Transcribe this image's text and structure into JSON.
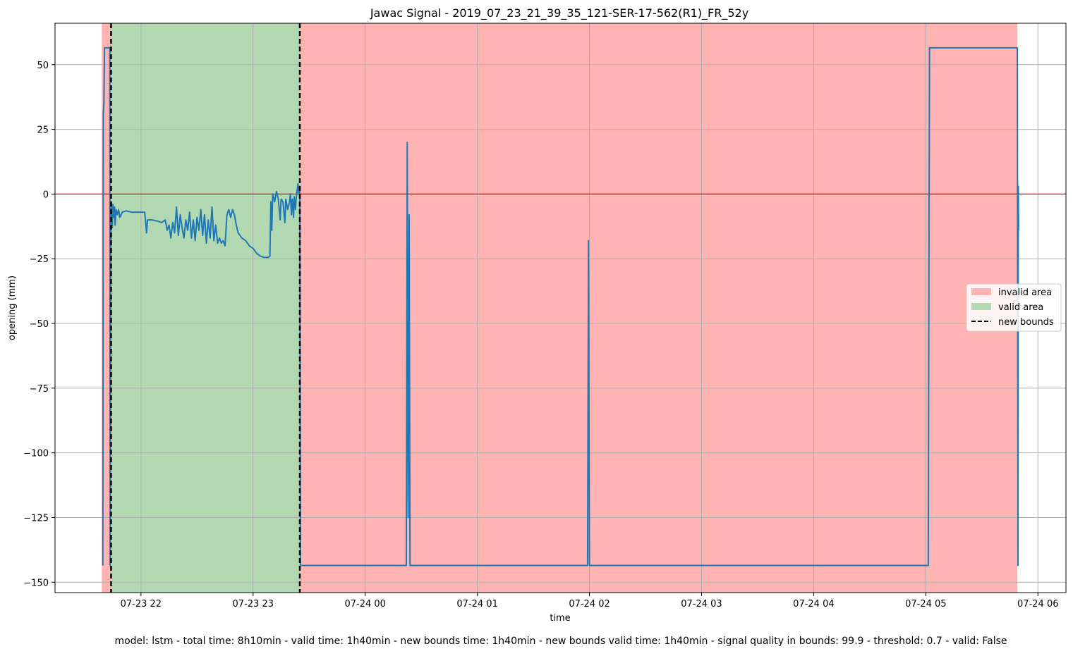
{
  "chart_data": {
    "type": "line",
    "title": "Jawac Signal - 2019_07_23_21_39_35_121-SER-17-562(R1)_FR_52y",
    "xlabel": "time",
    "ylabel": "opening (mm)",
    "ylim": [
      -154,
      66
    ],
    "xlim": [
      "2019-07-23 21:14",
      "2019-07-24 06:15"
    ],
    "grid": true,
    "legend_position": "center-right",
    "x_ticks": [
      {
        "label": "07-23 22",
        "t": "2019-07-23 22:00"
      },
      {
        "label": "07-23 23",
        "t": "2019-07-23 23:00"
      },
      {
        "label": "07-24 00",
        "t": "2019-07-24 00:00"
      },
      {
        "label": "07-24 01",
        "t": "2019-07-24 01:00"
      },
      {
        "label": "07-24 02",
        "t": "2019-07-24 02:00"
      },
      {
        "label": "07-24 03",
        "t": "2019-07-24 03:00"
      },
      {
        "label": "07-24 04",
        "t": "2019-07-24 04:00"
      },
      {
        "label": "07-24 05",
        "t": "2019-07-24 05:00"
      },
      {
        "label": "07-24 06",
        "t": "2019-07-24 06:00"
      }
    ],
    "y_ticks": [
      {
        "label": "50",
        "v": 50
      },
      {
        "label": "25",
        "v": 25
      },
      {
        "label": "0",
        "v": 0
      },
      {
        "label": "−25",
        "v": -25
      },
      {
        "label": "−50",
        "v": -50
      },
      {
        "label": "−75",
        "v": -75
      },
      {
        "label": "−100",
        "v": -100
      },
      {
        "label": "−125",
        "v": -125
      },
      {
        "label": "−150",
        "v": -150
      }
    ],
    "regions": [
      {
        "label": "invalid area",
        "kind": "invalid",
        "start": "2019-07-23 21:39",
        "end": "2019-07-24 05:49",
        "color": "#ffb3b3"
      },
      {
        "label": "valid area",
        "kind": "valid",
        "start": "2019-07-23 21:44",
        "end": "2019-07-23 23:25",
        "color": "#b3d9b3"
      }
    ],
    "bounds": {
      "label": "new bounds",
      "start": "2019-07-23 21:44",
      "end": "2019-07-23 23:25",
      "style": "dashed",
      "color": "#000000"
    },
    "reference_line": {
      "value": 0,
      "color": "#ff0000"
    },
    "series": [
      {
        "color": "#1f77b4",
        "points": [
          [
            "2019-07-23 21:39:35",
            -143.5
          ],
          [
            "2019-07-23 21:39:50",
            31
          ],
          [
            "2019-07-23 21:40:10",
            35
          ],
          [
            "2019-07-23 21:40:30",
            56.5
          ],
          [
            "2019-07-23 21:43:00",
            56.5
          ],
          [
            "2019-07-23 21:43:20",
            56.5
          ],
          [
            "2019-07-23 21:43:30",
            -143.5
          ],
          [
            "2019-07-23 21:43:50",
            -24
          ],
          [
            "2019-07-23 21:44:10",
            -3
          ],
          [
            "2019-07-23 21:44:40",
            -13
          ],
          [
            "2019-07-23 21:45:00",
            -4
          ],
          [
            "2019-07-23 21:45:20",
            -9
          ],
          [
            "2019-07-23 21:45:50",
            -5
          ],
          [
            "2019-07-23 21:46:10",
            -12
          ],
          [
            "2019-07-23 21:46:40",
            -6
          ],
          [
            "2019-07-23 21:47:20",
            -8
          ],
          [
            "2019-07-23 21:48:00",
            -6
          ],
          [
            "2019-07-23 21:48:40",
            -9
          ],
          [
            "2019-07-23 21:50:00",
            -7
          ],
          [
            "2019-07-23 21:52:00",
            -6.5
          ],
          [
            "2019-07-23 21:55:00",
            -7
          ],
          [
            "2019-07-23 21:58:00",
            -7
          ],
          [
            "2019-07-23 22:00:00",
            -7
          ],
          [
            "2019-07-23 22:02:00",
            -7
          ],
          [
            "2019-07-23 22:03:00",
            -15
          ],
          [
            "2019-07-23 22:03:30",
            -10
          ],
          [
            "2019-07-23 22:06:00",
            -10
          ],
          [
            "2019-07-23 22:09:00",
            -10.5
          ],
          [
            "2019-07-23 22:11:00",
            -11
          ],
          [
            "2019-07-23 22:13:00",
            -10
          ],
          [
            "2019-07-23 22:14:00",
            -14
          ],
          [
            "2019-07-23 22:15:00",
            -12
          ],
          [
            "2019-07-23 22:16:00",
            -17
          ],
          [
            "2019-07-23 22:17:00",
            -11
          ],
          [
            "2019-07-23 22:18:00",
            -15
          ],
          [
            "2019-07-23 22:19:00",
            -5
          ],
          [
            "2019-07-23 22:20:00",
            -16
          ],
          [
            "2019-07-23 22:21:00",
            -8
          ],
          [
            "2019-07-23 22:22:00",
            -13
          ],
          [
            "2019-07-23 22:23:00",
            -17
          ],
          [
            "2019-07-23 22:24:00",
            -10
          ],
          [
            "2019-07-23 22:25:00",
            -14
          ],
          [
            "2019-07-23 22:26:00",
            -7
          ],
          [
            "2019-07-23 22:27:00",
            -17
          ],
          [
            "2019-07-23 22:28:00",
            -10
          ],
          [
            "2019-07-23 22:29:00",
            -18
          ],
          [
            "2019-07-23 22:30:00",
            -9
          ],
          [
            "2019-07-23 22:31:00",
            -14
          ],
          [
            "2019-07-23 22:32:00",
            -6
          ],
          [
            "2019-07-23 22:33:00",
            -16
          ],
          [
            "2019-07-23 22:34:00",
            -8
          ],
          [
            "2019-07-23 22:35:00",
            -19
          ],
          [
            "2019-07-23 22:36:00",
            -10
          ],
          [
            "2019-07-23 22:37:00",
            -17
          ],
          [
            "2019-07-23 22:38:00",
            -5
          ],
          [
            "2019-07-23 22:39:00",
            -18
          ],
          [
            "2019-07-23 22:40:00",
            -12
          ],
          [
            "2019-07-23 22:41:00",
            -19
          ],
          [
            "2019-07-23 22:42:00",
            -17
          ],
          [
            "2019-07-23 22:43:00",
            -19
          ],
          [
            "2019-07-23 22:44:00",
            -18
          ],
          [
            "2019-07-23 22:45:00",
            -20
          ],
          [
            "2019-07-23 22:46:00",
            -8
          ],
          [
            "2019-07-23 22:47:00",
            -6
          ],
          [
            "2019-07-23 22:48:00",
            -9
          ],
          [
            "2019-07-23 22:49:00",
            -6
          ],
          [
            "2019-07-23 22:50:00",
            -8
          ],
          [
            "2019-07-23 22:51:00",
            -12
          ],
          [
            "2019-07-23 22:52:00",
            -15
          ],
          [
            "2019-07-23 22:54:00",
            -17
          ],
          [
            "2019-07-23 22:56:00",
            -18
          ],
          [
            "2019-07-23 22:58:00",
            -20
          ],
          [
            "2019-07-23 23:00:00",
            -21
          ],
          [
            "2019-07-23 23:02:00",
            -23
          ],
          [
            "2019-07-23 23:04:00",
            -24
          ],
          [
            "2019-07-23 23:06:00",
            -24.5
          ],
          [
            "2019-07-23 23:08:00",
            -24.5
          ],
          [
            "2019-07-23 23:09:00",
            -24
          ],
          [
            "2019-07-23 23:09:30",
            -3
          ],
          [
            "2019-07-23 23:10:00",
            -14
          ],
          [
            "2019-07-23 23:10:30",
            0
          ],
          [
            "2019-07-23 23:11:30",
            -3
          ],
          [
            "2019-07-23 23:12:30",
            1
          ],
          [
            "2019-07-23 23:13:30",
            -2
          ],
          [
            "2019-07-23 23:14:30",
            -10
          ],
          [
            "2019-07-23 23:15:00",
            -2
          ],
          [
            "2019-07-23 23:16:00",
            -3
          ],
          [
            "2019-07-23 23:17:00",
            -11
          ],
          [
            "2019-07-23 23:17:30",
            -2
          ],
          [
            "2019-07-23 23:18:30",
            -6
          ],
          [
            "2019-07-23 23:19:30",
            -3
          ],
          [
            "2019-07-23 23:20:00",
            0
          ],
          [
            "2019-07-23 23:20:30",
            -8
          ],
          [
            "2019-07-23 23:21:00",
            -2
          ],
          [
            "2019-07-23 23:21:40",
            -9
          ],
          [
            "2019-07-23 23:22:00",
            -1
          ],
          [
            "2019-07-23 23:22:40",
            -6
          ],
          [
            "2019-07-23 23:23:00",
            -2
          ],
          [
            "2019-07-23 23:23:40",
            2
          ],
          [
            "2019-07-23 23:24:00",
            4
          ],
          [
            "2019-07-23 23:24:30",
            0
          ],
          [
            "2019-07-23 23:25:00",
            3
          ],
          [
            "2019-07-23 23:25:20",
            -143.5
          ],
          [
            "2019-07-24 00:22:00",
            -143.5
          ],
          [
            "2019-07-24 00:22:30",
            20
          ],
          [
            "2019-07-24 00:23:00",
            -125
          ],
          [
            "2019-07-24 00:23:30",
            -8
          ],
          [
            "2019-07-24 00:24:00",
            -143.5
          ],
          [
            "2019-07-24 01:59:00",
            -143.5
          ],
          [
            "2019-07-24 01:59:30",
            -18
          ],
          [
            "2019-07-24 02:00:00",
            -143.5
          ],
          [
            "2019-07-24 05:01:20",
            -143.5
          ],
          [
            "2019-07-24 05:01:40",
            -30
          ],
          [
            "2019-07-24 05:02:00",
            56.5
          ],
          [
            "2019-07-24 05:49:00",
            56.5
          ],
          [
            "2019-07-24 05:49:20",
            -143.5
          ],
          [
            "2019-07-24 05:49:30",
            3
          ],
          [
            "2019-07-24 05:49:40",
            -14
          ]
        ]
      }
    ]
  },
  "footer": {
    "summary": "model: lstm - total time: 8h10min - valid time: 1h40min - new bounds time: 1h40min - new bounds valid time: 1h40min - signal quality in bounds: 99.9 - threshold: 0.7 - valid: False"
  }
}
